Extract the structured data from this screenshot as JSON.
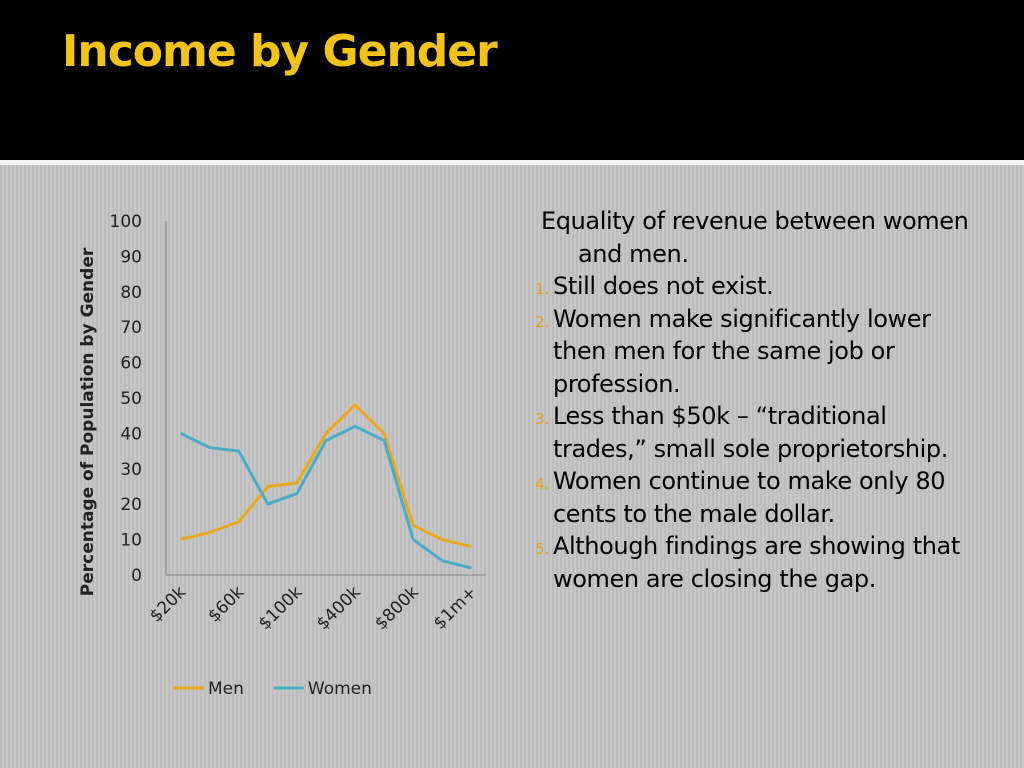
{
  "title": "Income by Gender",
  "chart_data": {
    "type": "line",
    "y_label": "Percentage of Population by Gender",
    "categories": [
      "$20k",
      null,
      "$60k",
      null,
      "$100k",
      null,
      "$400k",
      null,
      "$800k",
      null,
      "$1m+"
    ],
    "series": [
      {
        "name": "Men",
        "color": "#e8a920",
        "values": [
          10,
          12,
          15,
          25,
          26,
          40,
          48,
          40,
          14,
          10,
          8
        ]
      },
      {
        "name": "Women",
        "color": "#4bacc6",
        "values": [
          40,
          36,
          35,
          20,
          23,
          38,
          42,
          38,
          10,
          4,
          2
        ]
      }
    ],
    "ylim": [
      0,
      100
    ],
    "yticks": [
      0,
      10,
      20,
      30,
      40,
      50,
      60,
      70,
      80,
      90,
      100
    ],
    "grid": false,
    "legend": "bottom"
  },
  "text": {
    "intro": "Equality of revenue between women and men.",
    "items": [
      "Still does not exist.",
      "Women make significantly lower then men for the same job or profession.",
      "Less than $50k – “traditional trades,” small sole proprietorship.",
      "Women continue to make only 80 cents to the male dollar.",
      "Although findings are showing that women are closing the gap."
    ]
  }
}
